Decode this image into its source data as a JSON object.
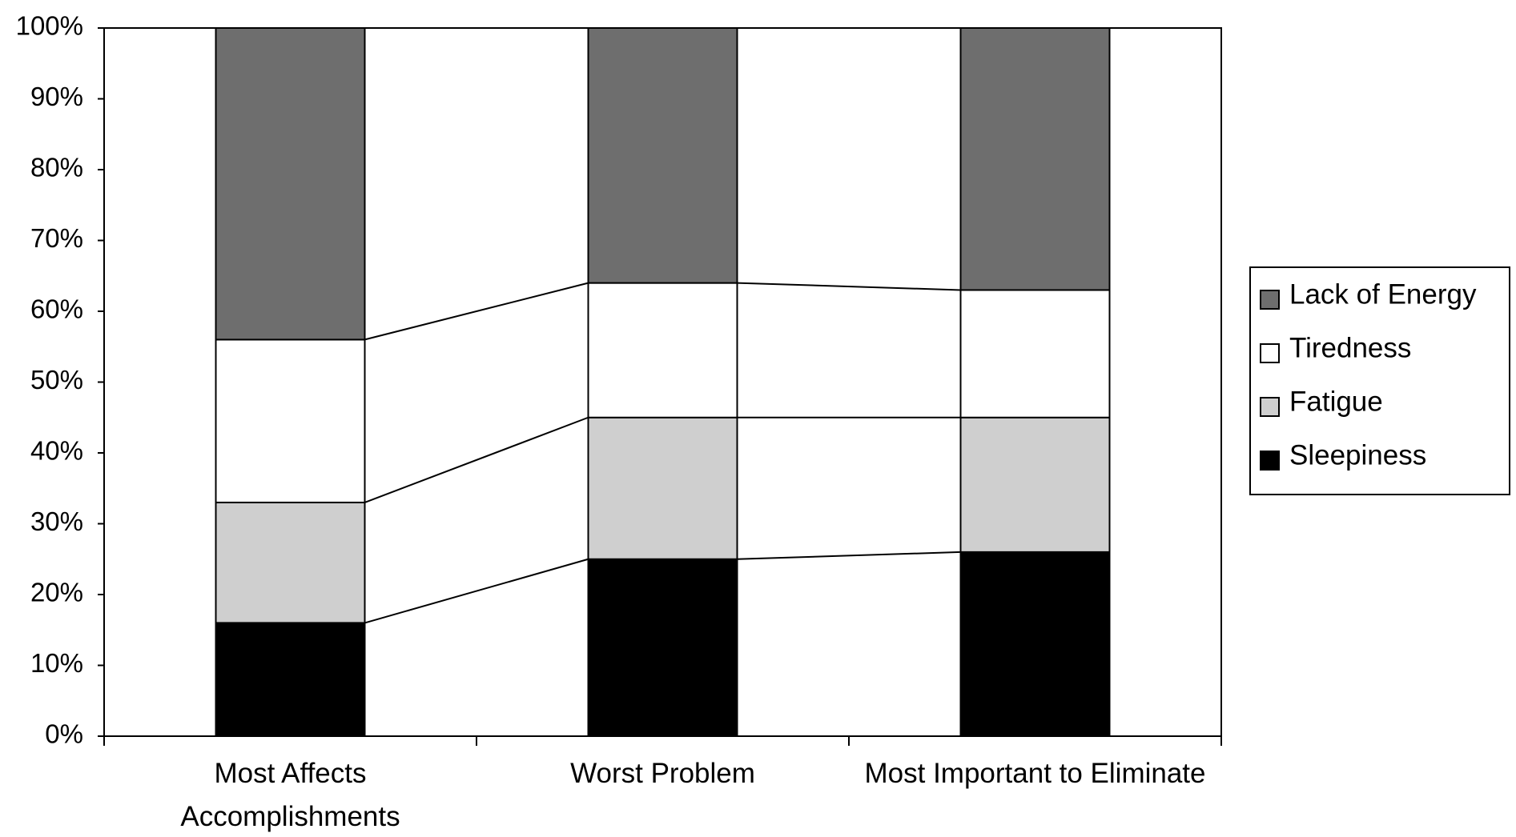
{
  "chart_data": {
    "type": "stacked_bar_percent",
    "categories": [
      "Most Affects\nAccomplishments",
      "Worst Problem",
      "Most Important to Eliminate"
    ],
    "series": [
      {
        "name": "Sleepiness",
        "color": "#000000",
        "values": [
          16,
          25,
          26
        ]
      },
      {
        "name": "Fatigue",
        "color": "#cfcfcf",
        "values": [
          17,
          20,
          19
        ]
      },
      {
        "name": "Tiredness",
        "color": "#ffffff",
        "values": [
          23,
          19,
          18
        ]
      },
      {
        "name": "Lack of Energy",
        "color": "#6e6e6e",
        "values": [
          44,
          36,
          37
        ]
      }
    ],
    "ylim": [
      0,
      100
    ],
    "yticks": [
      {
        "value": 0,
        "label": "0%"
      },
      {
        "value": 10,
        "label": "10%"
      },
      {
        "value": 20,
        "label": "20%"
      },
      {
        "value": 30,
        "label": "30%"
      },
      {
        "value": 40,
        "label": "40%"
      },
      {
        "value": 50,
        "label": "50%"
      },
      {
        "value": 60,
        "label": "60%"
      },
      {
        "value": 70,
        "label": "70%"
      },
      {
        "value": 80,
        "label": "80%"
      },
      {
        "value": 90,
        "label": "90%"
      },
      {
        "value": 100,
        "label": "100%"
      }
    ],
    "legend": "right",
    "series_lines": true
  }
}
